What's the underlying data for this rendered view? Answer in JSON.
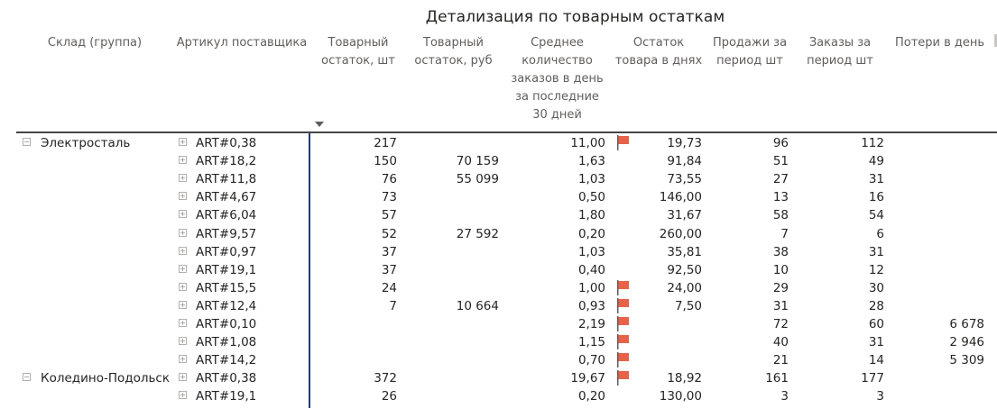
{
  "title": "Детализация по товарным остаткам",
  "headers": {
    "warehouse": "Склад (группа)",
    "article": "Артикул поставщика",
    "stock_qty": [
      "Товарный",
      "остаток, шт"
    ],
    "stock_rub": [
      "Товарный",
      "остаток, руб"
    ],
    "avg_orders": [
      "Среднее",
      "количество",
      "заказов в день",
      "за последние",
      "30 дней"
    ],
    "stock_days": [
      "Остаток",
      "товара в днях"
    ],
    "sales": [
      "Продажи за",
      "период шт"
    ],
    "orders": [
      "Заказы за",
      "период шт"
    ],
    "losses": "Потери в день"
  },
  "sorted_column": "stock_qty",
  "flag_color": "#e8624a",
  "rows": [
    {
      "warehouse": "Электросталь",
      "article": "ART#0,38",
      "qty": "217",
      "rub": "",
      "avg": "11,00",
      "flag": true,
      "days": "19,73",
      "sales": "96",
      "orders": "112",
      "loss": ""
    },
    {
      "warehouse": "",
      "article": "ART#18,2",
      "qty": "150",
      "rub": "70 159",
      "avg": "1,63",
      "flag": false,
      "days": "91,84",
      "sales": "51",
      "orders": "49",
      "loss": ""
    },
    {
      "warehouse": "",
      "article": "ART#11,8",
      "qty": "76",
      "rub": "55 099",
      "avg": "1,03",
      "flag": false,
      "days": "73,55",
      "sales": "27",
      "orders": "31",
      "loss": ""
    },
    {
      "warehouse": "",
      "article": "ART#4,67",
      "qty": "73",
      "rub": "",
      "avg": "0,50",
      "flag": false,
      "days": "146,00",
      "sales": "13",
      "orders": "16",
      "loss": ""
    },
    {
      "warehouse": "",
      "article": "ART#6,04",
      "qty": "57",
      "rub": "",
      "avg": "1,80",
      "flag": false,
      "days": "31,67",
      "sales": "58",
      "orders": "54",
      "loss": ""
    },
    {
      "warehouse": "",
      "article": "ART#9,57",
      "qty": "52",
      "rub": "27 592",
      "avg": "0,20",
      "flag": false,
      "days": "260,00",
      "sales": "7",
      "orders": "6",
      "loss": ""
    },
    {
      "warehouse": "",
      "article": "ART#0,97",
      "qty": "37",
      "rub": "",
      "avg": "1,03",
      "flag": false,
      "days": "35,81",
      "sales": "38",
      "orders": "31",
      "loss": ""
    },
    {
      "warehouse": "",
      "article": "ART#19,1",
      "qty": "37",
      "rub": "",
      "avg": "0,40",
      "flag": false,
      "days": "92,50",
      "sales": "10",
      "orders": "12",
      "loss": ""
    },
    {
      "warehouse": "",
      "article": "ART#15,5",
      "qty": "24",
      "rub": "",
      "avg": "1,00",
      "flag": true,
      "days": "24,00",
      "sales": "29",
      "orders": "30",
      "loss": ""
    },
    {
      "warehouse": "",
      "article": "ART#12,4",
      "qty": "7",
      "rub": "10 664",
      "avg": "0,93",
      "flag": true,
      "days": "7,50",
      "sales": "31",
      "orders": "28",
      "loss": ""
    },
    {
      "warehouse": "",
      "article": "ART#0,10",
      "qty": "",
      "rub": "",
      "avg": "2,19",
      "flag": true,
      "days": "",
      "sales": "72",
      "orders": "60",
      "loss": "6 678"
    },
    {
      "warehouse": "",
      "article": "ART#1,08",
      "qty": "",
      "rub": "",
      "avg": "1,15",
      "flag": true,
      "days": "",
      "sales": "40",
      "orders": "31",
      "loss": "2 946"
    },
    {
      "warehouse": "",
      "article": "ART#14,2",
      "qty": "",
      "rub": "",
      "avg": "0,70",
      "flag": true,
      "days": "",
      "sales": "21",
      "orders": "14",
      "loss": "5 309"
    },
    {
      "warehouse": "Коледино-Подольск",
      "article": "ART#0,38",
      "qty": "372",
      "rub": "",
      "avg": "19,67",
      "flag": true,
      "days": "18,92",
      "sales": "161",
      "orders": "177",
      "loss": ""
    },
    {
      "warehouse": "",
      "article": "ART#19,1",
      "qty": "26",
      "rub": "",
      "avg": "0,20",
      "flag": false,
      "days": "130,00",
      "sales": "3",
      "orders": "3",
      "loss": ""
    }
  ]
}
